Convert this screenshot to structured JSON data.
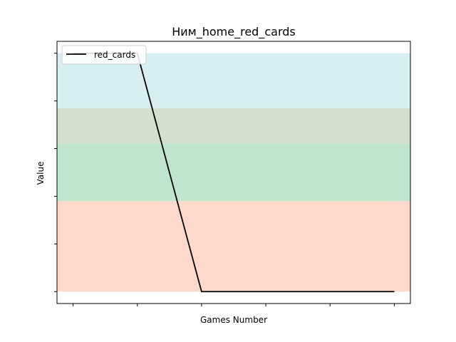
{
  "chart_data": {
    "type": "line",
    "title": "Ним_home_red_cards",
    "xlabel": "Games Number",
    "ylabel": "Value",
    "x": [
      0,
      1,
      2,
      3,
      4,
      5
    ],
    "xlim": [
      -0.25,
      5.25
    ],
    "ylim": [
      -0.25,
      5.25
    ],
    "x_tick_labels_visible": false,
    "y_tick_labels_visible": false,
    "grid": false,
    "legend_position": "top-left",
    "series": [
      {
        "name": "red_cards",
        "color": "#000000",
        "values": [
          5,
          5,
          0,
          0,
          0,
          0
        ]
      }
    ],
    "bands": [
      {
        "from": 0,
        "to": 1.9,
        "color": "#fdd9cb"
      },
      {
        "from": 1.9,
        "to": 3.1,
        "color": "#c0e5cc"
      },
      {
        "from": 3.1,
        "to": 3.85,
        "color": "#d2e0cd"
      },
      {
        "from": 3.85,
        "to": 5.0,
        "color": "#d7eef3"
      }
    ]
  }
}
